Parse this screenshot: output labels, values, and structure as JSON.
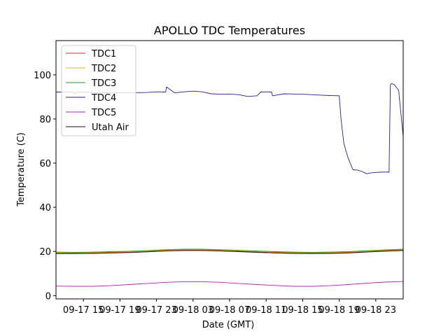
{
  "chart_data": {
    "type": "line",
    "title": "APOLLO TDC Temperatures",
    "xlabel": "Date (GMT)",
    "ylabel": "Temperature (C)",
    "xlim_hours": [
      0,
      38
    ],
    "ylim": [
      -1.5,
      115.5
    ],
    "y_ticks": [
      0,
      20,
      40,
      60,
      80,
      100
    ],
    "x_ticks": [
      {
        "h": 3,
        "label": "09-17 15"
      },
      {
        "h": 7,
        "label": "09-17 19"
      },
      {
        "h": 11,
        "label": "09-17 23"
      },
      {
        "h": 15,
        "label": "09-18 03"
      },
      {
        "h": 19,
        "label": "09-18 07"
      },
      {
        "h": 23,
        "label": "09-18 11"
      },
      {
        "h": 27,
        "label": "09-18 15"
      },
      {
        "h": 31,
        "label": "09-18 19"
      },
      {
        "h": 35,
        "label": "09-18 23"
      }
    ],
    "legend_position": "upper-left",
    "series": [
      {
        "name": "TDC1",
        "color": "#e8202a",
        "x": [
          0,
          2,
          4,
          6,
          8,
          10,
          12,
          14,
          16,
          18,
          20,
          22,
          24,
          26,
          28,
          30,
          32,
          34,
          36,
          38
        ],
        "y": [
          19.2,
          19.2,
          19.3,
          19.5,
          19.7,
          20.0,
          20.4,
          20.6,
          20.6,
          20.4,
          20.1,
          19.8,
          19.5,
          19.3,
          19.2,
          19.3,
          19.5,
          19.9,
          20.3,
          20.6
        ]
      },
      {
        "name": "TDC2",
        "color": "#e6b400",
        "x": [
          0,
          2,
          4,
          6,
          8,
          10,
          12,
          14,
          16,
          18,
          20,
          22,
          24,
          26,
          28,
          30,
          32,
          34,
          36,
          38
        ],
        "y": [
          19.4,
          19.4,
          19.5,
          19.7,
          19.9,
          20.2,
          20.6,
          20.8,
          20.8,
          20.6,
          20.3,
          20.0,
          19.7,
          19.5,
          19.4,
          19.5,
          19.7,
          20.1,
          20.5,
          20.8
        ]
      },
      {
        "name": "TDC3",
        "color": "#1f9a1f",
        "x": [
          0,
          2,
          4,
          6,
          8,
          10,
          12,
          14,
          16,
          18,
          20,
          22,
          24,
          26,
          28,
          30,
          32,
          34,
          36,
          38
        ],
        "y": [
          19.7,
          19.6,
          19.7,
          19.9,
          20.1,
          20.4,
          20.8,
          21.0,
          21.0,
          20.8,
          20.5,
          20.2,
          19.9,
          19.7,
          19.6,
          19.7,
          19.9,
          20.3,
          20.7,
          21.0
        ]
      },
      {
        "name": "TDC4",
        "color": "#2a1a9a",
        "x": [
          0,
          1.83,
          2,
          2.4,
          4,
          6,
          8,
          10,
          11,
          12,
          12.1,
          13,
          14,
          15,
          16,
          17,
          18,
          19,
          20,
          21,
          22,
          22.4,
          23,
          23.6,
          23.7,
          25,
          26,
          27,
          28,
          29,
          30,
          31,
          31.2,
          31.5,
          31.7,
          32,
          32.5,
          33,
          33.5,
          34,
          34.5,
          35,
          35.5,
          36,
          36.45,
          36.6,
          36.7,
          37,
          37.5,
          38
        ],
        "y": [
          92.2,
          92.2,
          91.6,
          92.2,
          92.0,
          91.9,
          91.8,
          92.0,
          92.3,
          92.2,
          94.5,
          91.8,
          92.3,
          92.6,
          92.3,
          91.4,
          91.2,
          91.3,
          91.0,
          90.2,
          90.5,
          92.2,
          92.3,
          92.2,
          90.5,
          91.4,
          91.3,
          91.2,
          91.0,
          90.8,
          90.6,
          90.5,
          80,
          69,
          66,
          62,
          57,
          56.8,
          56.2,
          55.2,
          55.6,
          55.8,
          55.9,
          56.0,
          55.9,
          95.5,
          96,
          95.7,
          93,
          72
        ]
      },
      {
        "name": "TDC5",
        "color": "#b020b0",
        "x": [
          0,
          2,
          4,
          6,
          8,
          10,
          12,
          14,
          16,
          18,
          20,
          22,
          24,
          26,
          28,
          30,
          32,
          34,
          36,
          38
        ],
        "y": [
          4.3,
          4.2,
          4.2,
          4.5,
          5.0,
          5.5,
          6.0,
          6.3,
          6.3,
          6.0,
          5.5,
          5.0,
          4.6,
          4.2,
          4.2,
          4.5,
          5.0,
          5.6,
          6.1,
          6.4
        ]
      },
      {
        "name": "Utah Air",
        "color": "#111111",
        "x": [
          0,
          2,
          4,
          6,
          8,
          10,
          12,
          14,
          16,
          18,
          20,
          22,
          24,
          26,
          28,
          30,
          32,
          34,
          36,
          38
        ],
        "y": [
          19.0,
          19.0,
          19.1,
          19.3,
          19.5,
          19.8,
          20.2,
          20.4,
          20.4,
          20.2,
          19.9,
          19.6,
          19.3,
          19.1,
          19.0,
          19.1,
          19.3,
          19.7,
          20.1,
          20.4
        ]
      }
    ]
  }
}
